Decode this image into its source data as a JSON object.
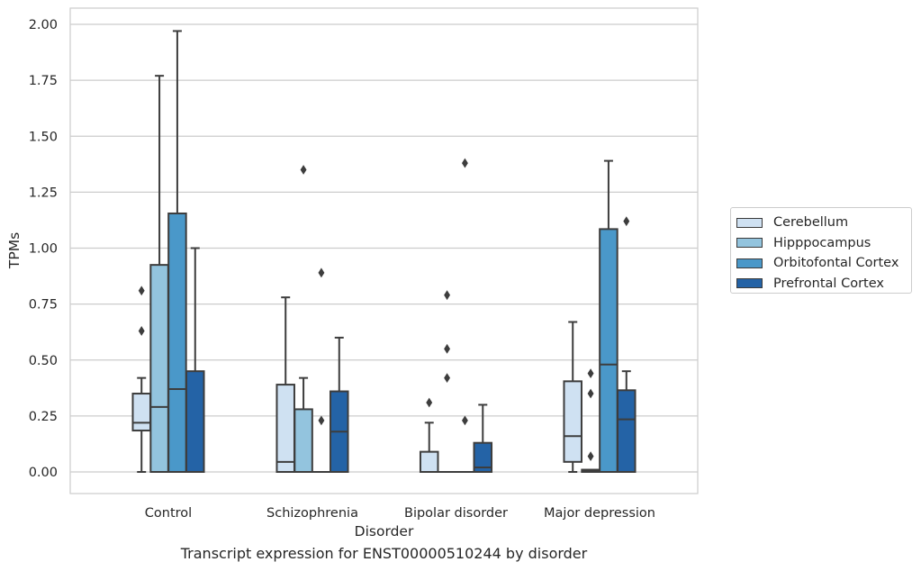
{
  "chart_data": {
    "type": "boxplot",
    "title": "Transcript expression for ENST00000510244 by disorder",
    "xlabel": "Disorder",
    "ylabel": "TPMs",
    "ylim": [
      -0.1,
      2.07
    ],
    "yticks": [
      "0.00",
      "0.25",
      "0.50",
      "0.75",
      "1.00",
      "1.25",
      "1.50",
      "1.75",
      "2.00"
    ],
    "categories": [
      "Control",
      "Schizophrenia",
      "Bipolar disorder",
      "Major depression"
    ],
    "grid": "horizontal",
    "legend_position": "right",
    "series": [
      {
        "name": "Cerebellum",
        "color": "#cfe1f2",
        "boxes": [
          {
            "whislo": 0.0,
            "q1": 0.185,
            "med": 0.22,
            "q3": 0.35,
            "whishi": 0.42,
            "fliers": [
              0.81,
              0.63
            ]
          },
          {
            "whislo": 0.0,
            "q1": 0.0,
            "med": 0.045,
            "q3": 0.39,
            "whishi": 0.78,
            "fliers": []
          },
          {
            "whislo": 0.0,
            "q1": 0.0,
            "med": 0.0,
            "q3": 0.09,
            "whishi": 0.22,
            "fliers": [
              0.31
            ]
          },
          {
            "whislo": 0.0,
            "q1": 0.045,
            "med": 0.16,
            "q3": 0.405,
            "whishi": 0.67,
            "fliers": []
          }
        ]
      },
      {
        "name": "Hipppocampus",
        "color": "#93c4de",
        "boxes": [
          {
            "whislo": 0.0,
            "q1": 0.0,
            "med": 0.29,
            "q3": 0.925,
            "whishi": 1.77,
            "fliers": []
          },
          {
            "whislo": 0.0,
            "q1": 0.0,
            "med": 0.0,
            "q3": 0.28,
            "whishi": 0.42,
            "fliers": [
              1.35
            ]
          },
          {
            "whislo": 0.0,
            "q1": 0.0,
            "med": 0.0,
            "q3": 0.0,
            "whishi": 0.0,
            "fliers": [
              0.79,
              0.55,
              0.42
            ]
          },
          {
            "whislo": 0.0,
            "q1": 0.0,
            "med": 0.005,
            "q3": 0.01,
            "whishi": 0.01,
            "fliers": [
              0.44,
              0.35,
              0.07
            ]
          }
        ]
      },
      {
        "name": "Orbitofontal Cortex",
        "color": "#4a98c9",
        "boxes": [
          {
            "whislo": 0.0,
            "q1": 0.0,
            "med": 0.37,
            "q3": 1.155,
            "whishi": 1.97,
            "fliers": []
          },
          {
            "whislo": 0.0,
            "q1": 0.0,
            "med": 0.0,
            "q3": 0.0,
            "whishi": 0.0,
            "fliers": [
              0.89,
              0.23
            ]
          },
          {
            "whislo": 0.0,
            "q1": 0.0,
            "med": 0.0,
            "q3": 0.0,
            "whishi": 0.0,
            "fliers": [
              1.38,
              0.23
            ]
          },
          {
            "whislo": 0.0,
            "q1": 0.0,
            "med": 0.48,
            "q3": 1.085,
            "whishi": 1.39,
            "fliers": []
          }
        ]
      },
      {
        "name": "Prefrontal Cortex",
        "color": "#2463a6",
        "boxes": [
          {
            "whislo": 0.0,
            "q1": 0.0,
            "med": 0.0,
            "q3": 0.45,
            "whishi": 1.0,
            "fliers": []
          },
          {
            "whislo": 0.0,
            "q1": 0.0,
            "med": 0.18,
            "q3": 0.36,
            "whishi": 0.6,
            "fliers": []
          },
          {
            "whislo": 0.0,
            "q1": 0.0,
            "med": 0.02,
            "q3": 0.13,
            "whishi": 0.3,
            "fliers": []
          },
          {
            "whislo": 0.0,
            "q1": 0.0,
            "med": 0.235,
            "q3": 0.365,
            "whishi": 0.45,
            "fliers": [
              1.12
            ]
          }
        ]
      }
    ]
  }
}
